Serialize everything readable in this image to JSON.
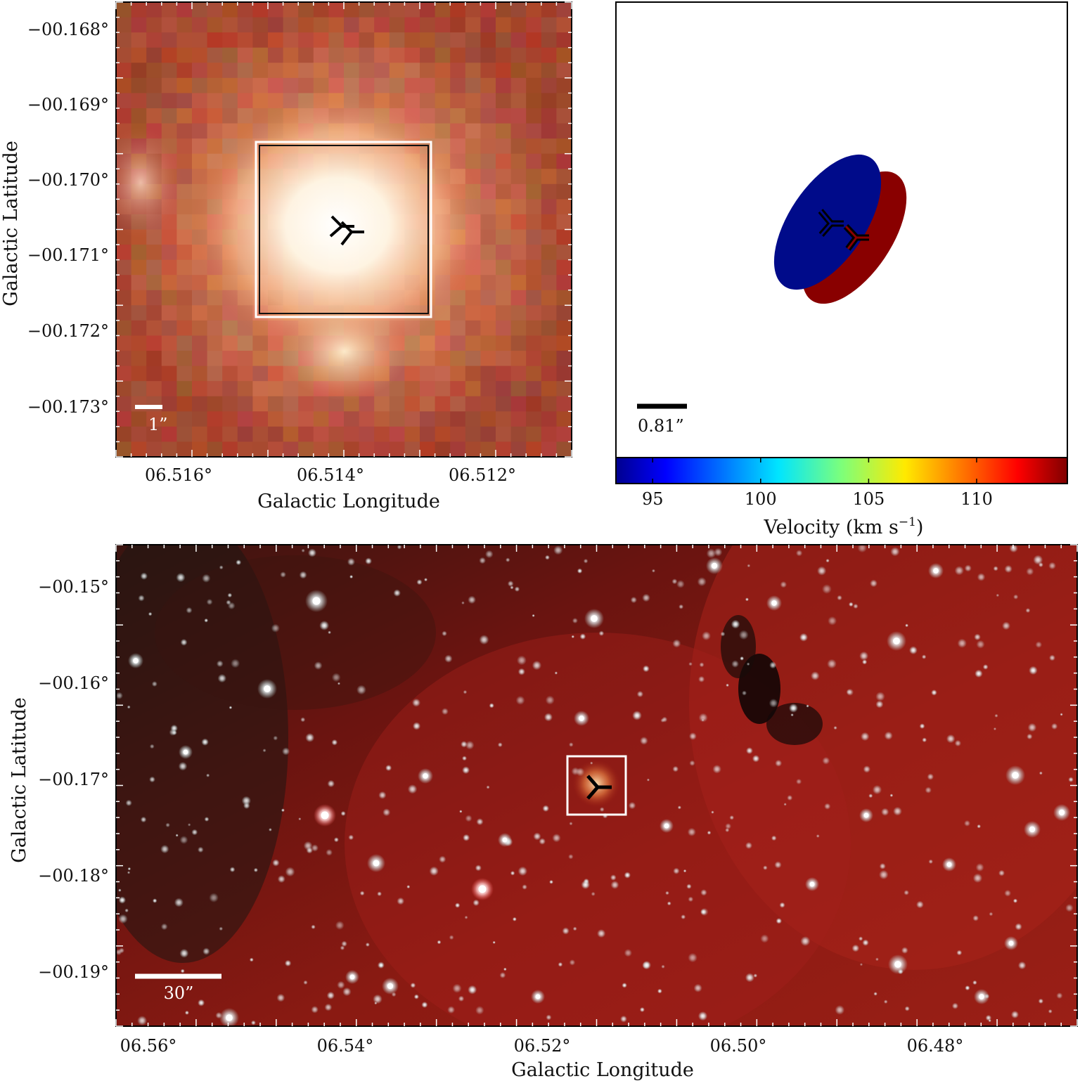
{
  "panel_a": {
    "ylabel": "Galactic Latitude",
    "xlabel": "Galactic Longitude",
    "yticks": [
      "−00.168°",
      "−00.169°",
      "−00.170°",
      "−00.171°",
      "−00.172°",
      "−00.173°"
    ],
    "xticks": [
      "06.516°",
      "06.514°",
      "06.512°"
    ],
    "scalebar": "1”"
  },
  "panel_b": {
    "scalebar": "0.81”",
    "colorbar_label": "Velocity (km s",
    "colorbar_sup": "−1",
    "colorbar_close": ")",
    "colorbar_ticks": [
      "95",
      "100",
      "105",
      "110"
    ],
    "colorbar_range": [
      93.3,
      114.2
    ],
    "blue_color": "#000b8a",
    "red_color": "#890000"
  },
  "panel_c": {
    "ylabel": "Galactic Latitude",
    "xlabel": "Galactic Longitude",
    "yticks": [
      "−00.15°",
      "−00.16°",
      "−00.17°",
      "−00.18°",
      "−00.19°"
    ],
    "xticks": [
      "06.56°",
      "06.54°",
      "06.52°",
      "06.50°",
      "06.48°"
    ],
    "scalebar": "30”"
  }
}
